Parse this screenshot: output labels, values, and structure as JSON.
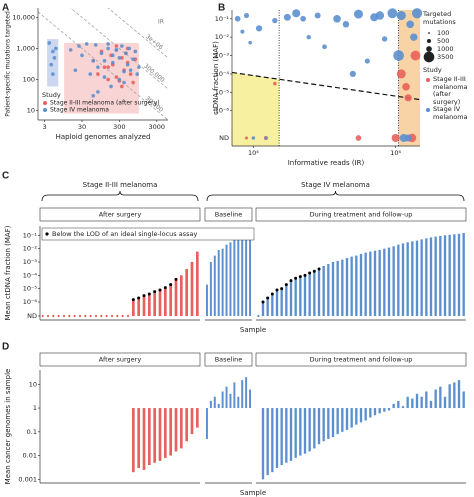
{
  "chart_data": [
    {
      "panel": "A",
      "type": "scatter",
      "xlabel": "Haploid genomes analyzed",
      "ylabel": "Patient-specific mutations targeted",
      "log_x": true,
      "log_y": true,
      "xlim": [
        2,
        6000
      ],
      "ylim": [
        5,
        20000
      ],
      "xticks": [
        3,
        30,
        300,
        3000
      ],
      "yticks": [
        {
          "value": 10000,
          "label": "10,000"
        },
        {
          "value": 1000,
          "label": "1,000"
        },
        100,
        10
      ],
      "ir_title": "IR",
      "ir_lines": [
        {
          "value": 3000000,
          "label": "3e+06"
        },
        {
          "value": 300000,
          "label": "300,000"
        },
        {
          "value": 30000,
          "label": "30,000"
        }
      ],
      "regions": [
        {
          "x": [
            3.5,
            7
          ],
          "y": [
            60,
            2000
          ],
          "color": "#c3d1ec"
        },
        {
          "x": [
            10,
            1000
          ],
          "y": [
            8,
            1500
          ],
          "color": "#f7cdcd"
        }
      ],
      "legend_title": "Study",
      "series": [
        {
          "name": "Stage II-III melanoma (after surgery)",
          "color": "#e8605c",
          "x": [
            60,
            80,
            100,
            120,
            150,
            180,
            200,
            250,
            300,
            350,
            400,
            450,
            500,
            600,
            700,
            800,
            150,
            250,
            350,
            500
          ],
          "y": [
            400,
            150,
            800,
            250,
            100,
            600,
            300,
            1200,
            90,
            500,
            200,
            700,
            350,
            150,
            80,
            450,
            250,
            120,
            60,
            1000
          ]
        },
        {
          "name": "Stage IV melanoma",
          "color": "#5b8fcf",
          "x": [
            4,
            4.5,
            5,
            5,
            5.5,
            6,
            15,
            20,
            25,
            30,
            40,
            50,
            60,
            70,
            80,
            100,
            120,
            150,
            180,
            200,
            250,
            300,
            350,
            400,
            450,
            500,
            550,
            600,
            700,
            800,
            900,
            1000,
            120,
            200,
            300,
            60,
            80,
            250,
            400,
            150
          ],
          "y": [
            1500,
            300,
            800,
            150,
            500,
            1000,
            900,
            200,
            1200,
            600,
            1400,
            150,
            400,
            1300,
            250,
            700,
            120,
            1000,
            60,
            350,
            900,
            500,
            1200,
            180,
            700,
            300,
            1000,
            200,
            450,
            800,
            150,
            250,
            400,
            600,
            100,
            30,
            40,
            900,
            80,
            1400
          ]
        }
      ]
    },
    {
      "panel": "B",
      "type": "scatter",
      "xlabel": "Informative reads (IR)",
      "ylabel": "ctDNA fraction (MAF)",
      "log_x": true,
      "log_y": true,
      "xlim": [
        5000,
        2200000
      ],
      "ylim": [
        4e-07,
        0.3
      ],
      "xticks": [
        {
          "value": 10000,
          "label": "10⁴"
        },
        {
          "value": 1000000,
          "label": "10⁶"
        }
      ],
      "yticks": [
        {
          "value": 0.1,
          "label": "10⁻¹"
        },
        {
          "value": 0.01,
          "label": "10⁻²"
        },
        {
          "value": 0.001,
          "label": "10⁻³"
        },
        {
          "value": 0.0001,
          "label": "10⁻⁴"
        },
        {
          "value": 1e-05,
          "label": "10⁻⁵"
        },
        {
          "value": 1e-06,
          "label": "10⁻⁶"
        }
      ],
      "nd_label": "ND",
      "vlines": [
        23000,
        1100000
      ],
      "lod_line": {
        "x": [
          5000,
          2200000
        ],
        "y": [
          0.00012,
          4e-06
        ]
      },
      "regions": [
        {
          "x": [
            5000,
            23000
          ],
          "under_lod": true,
          "color": "#f7f0a0"
        },
        {
          "x": [
            1100000,
            2200000
          ],
          "color": "#f8d3a6"
        }
      ],
      "size_legend": {
        "title": "Targeted mutations",
        "values": [
          100,
          500,
          1000,
          3500
        ]
      },
      "legend_title": "Study",
      "series": [
        {
          "name": "Stage II-III melanoma (after surgery)",
          "color": "#e8605c",
          "x": [
            8000,
            15000,
            300000,
            1000000,
            1200000,
            1400000,
            1500000,
            1700000,
            1900000,
            20000
          ],
          "y": [
            null,
            null,
            null,
            null,
            0.0001,
            2e-05,
            5e-06,
            null,
            0.001,
            3e-05
          ],
          "size": [
            300,
            500,
            1000,
            2000,
            2500,
            1800,
            1600,
            2200,
            3000,
            400
          ]
        },
        {
          "name": "Stage IV melanoma",
          "color": "#5b8fcf",
          "x": [
            6000,
            7000,
            8000,
            9000,
            12000,
            15000,
            20000,
            30000,
            40000,
            60000,
            80000,
            100000,
            150000,
            200000,
            300000,
            400000,
            500000,
            700000,
            900000,
            1200000,
            1500000,
            1800000,
            10000,
            50000,
            250000,
            600000,
            1100000,
            1300000,
            1600000,
            2000000
          ],
          "y": [
            0.1,
            0.02,
            0.15,
            0.005,
            0.03,
            null,
            0.08,
            0.12,
            0.2,
            0.01,
            0.15,
            0.003,
            0.1,
            0.05,
            0.18,
            0.0005,
            0.12,
            0.008,
            0.2,
            0.15,
            null,
            0.01,
            null,
            0.1,
            0.0001,
            0.15,
            0.001,
            null,
            0.05,
            0.2
          ],
          "size": [
            1000,
            500,
            800,
            400,
            1200,
            300,
            900,
            1500,
            2000,
            600,
            1100,
            700,
            1800,
            1300,
            2500,
            800,
            2000,
            900,
            3000,
            2600,
            1500,
            1700,
            400,
            1000,
            1200,
            2200,
            3500,
            2000,
            1800,
            3200
          ]
        }
      ]
    },
    {
      "panel": "C",
      "type": "lollipop",
      "xlabel": "Sample",
      "ylabel": "Mean ctDNA fraction (MAF)",
      "log_y": true,
      "ylim": [
        5e-07,
        0.5
      ],
      "yticks": [
        {
          "value": 0.1,
          "label": "10⁻¹"
        },
        {
          "value": 0.01,
          "label": "10⁻²"
        },
        {
          "value": 0.001,
          "label": "10⁻³"
        },
        {
          "value": 0.0001,
          "label": "10⁻⁴"
        },
        {
          "value": 1e-05,
          "label": "10⁻⁵"
        },
        {
          "value": 1e-06,
          "label": "10⁻⁶"
        }
      ],
      "nd_label": "ND",
      "legend": "Below the LOD of an ideal single-locus assay",
      "groups": [
        {
          "name": "Stage II-III melanoma",
          "series": [
            {
              "name": "After surgery",
              "color": "#e8605c",
              "values": [
                null,
                null,
                null,
                null,
                null,
                null,
                null,
                null,
                null,
                null,
                null,
                null,
                null,
                null,
                null,
                null,
                null,
                1.5e-06,
                2e-06,
                3e-06,
                4e-06,
                6e-06,
                8e-06,
                1.2e-05,
                2e-05,
                5e-05,
                0.0001,
                0.0003,
                0.001,
                0.006
              ],
              "below_lod": [
                false,
                false,
                false,
                false,
                false,
                false,
                false,
                false,
                false,
                false,
                false,
                false,
                false,
                false,
                false,
                false,
                false,
                true,
                true,
                true,
                true,
                true,
                true,
                true,
                true,
                true,
                false,
                false,
                false,
                false
              ]
            }
          ]
        },
        {
          "name": "Stage IV melanoma",
          "series": [
            {
              "name": "Baseline",
              "color": "#5b8fcf",
              "values": [
                2e-05,
                0.001,
                0.003,
                0.008,
                0.01,
                0.02,
                0.03,
                0.05,
                0.06,
                0.08,
                0.1,
                0.12
              ],
              "below_lod": [
                false,
                false,
                false,
                false,
                false,
                false,
                false,
                false,
                false,
                false,
                false,
                false
              ]
            },
            {
              "name": "During treatment and follow-up",
              "color": "#5b8fcf",
              "values": [
                null,
                1e-06,
                2e-06,
                4e-06,
                8e-06,
                1e-05,
                2e-05,
                4e-05,
                6e-05,
                8e-05,
                0.0001,
                0.00015,
                0.0002,
                0.0003,
                0.0005,
                0.0007,
                0.001,
                0.0012,
                0.0015,
                0.002,
                0.0025,
                0.003,
                0.004,
                0.005,
                0.006,
                0.007,
                0.008,
                0.01,
                0.012,
                0.015,
                0.02,
                0.025,
                0.03,
                0.035,
                0.04,
                0.05,
                0.06,
                0.07,
                0.08,
                0.09,
                0.1,
                0.11,
                0.12,
                0.13,
                0.15
              ],
              "below_lod": [
                false,
                true,
                true,
                true,
                true,
                true,
                true,
                true,
                true,
                true,
                true,
                true,
                true,
                true,
                false,
                false,
                false,
                false,
                false,
                false,
                false,
                false,
                false,
                false,
                false,
                false,
                false,
                false,
                false,
                false,
                false,
                false,
                false,
                false,
                false,
                false,
                false,
                false,
                false,
                false,
                false,
                false,
                false,
                false,
                false
              ]
            }
          ]
        }
      ]
    },
    {
      "panel": "D",
      "type": "bar",
      "xlabel": "Sample",
      "ylabel": "Mean cancer genomes in sample",
      "log_y": true,
      "ylim": [
        0.0007,
        40
      ],
      "yticks": [
        10,
        1,
        0.1,
        0.01,
        0.001
      ],
      "series": [
        {
          "name": "After surgery",
          "color": "#e8605c",
          "values": [
            null,
            null,
            null,
            null,
            null,
            null,
            null,
            null,
            null,
            null,
            null,
            null,
            null,
            null,
            null,
            null,
            null,
            0.002,
            0.003,
            0.0025,
            0.004,
            0.005,
            0.006,
            0.008,
            0.01,
            0.015,
            0.02,
            0.04,
            0.08,
            0.15
          ]
        },
        {
          "name": "Baseline",
          "color": "#5b8fcf",
          "values": [
            0.05,
            2,
            3,
            1.5,
            5,
            8,
            4,
            12,
            3,
            15,
            20,
            6
          ]
        },
        {
          "name": "During treatment and follow-up",
          "color": "#5b8fcf",
          "values": [
            null,
            0.001,
            0.0015,
            0.002,
            0.003,
            0.004,
            0.005,
            0.006,
            0.008,
            0.01,
            0.012,
            0.015,
            0.02,
            0.03,
            0.04,
            0.05,
            0.06,
            0.08,
            0.1,
            0.12,
            0.15,
            0.2,
            0.25,
            0.3,
            0.4,
            0.5,
            0.6,
            0.7,
            0.8,
            1.5,
            2,
            1.2,
            3,
            2.5,
            4,
            3,
            5,
            2,
            6,
            8,
            3,
            10,
            12,
            15,
            5
          ]
        }
      ]
    }
  ]
}
